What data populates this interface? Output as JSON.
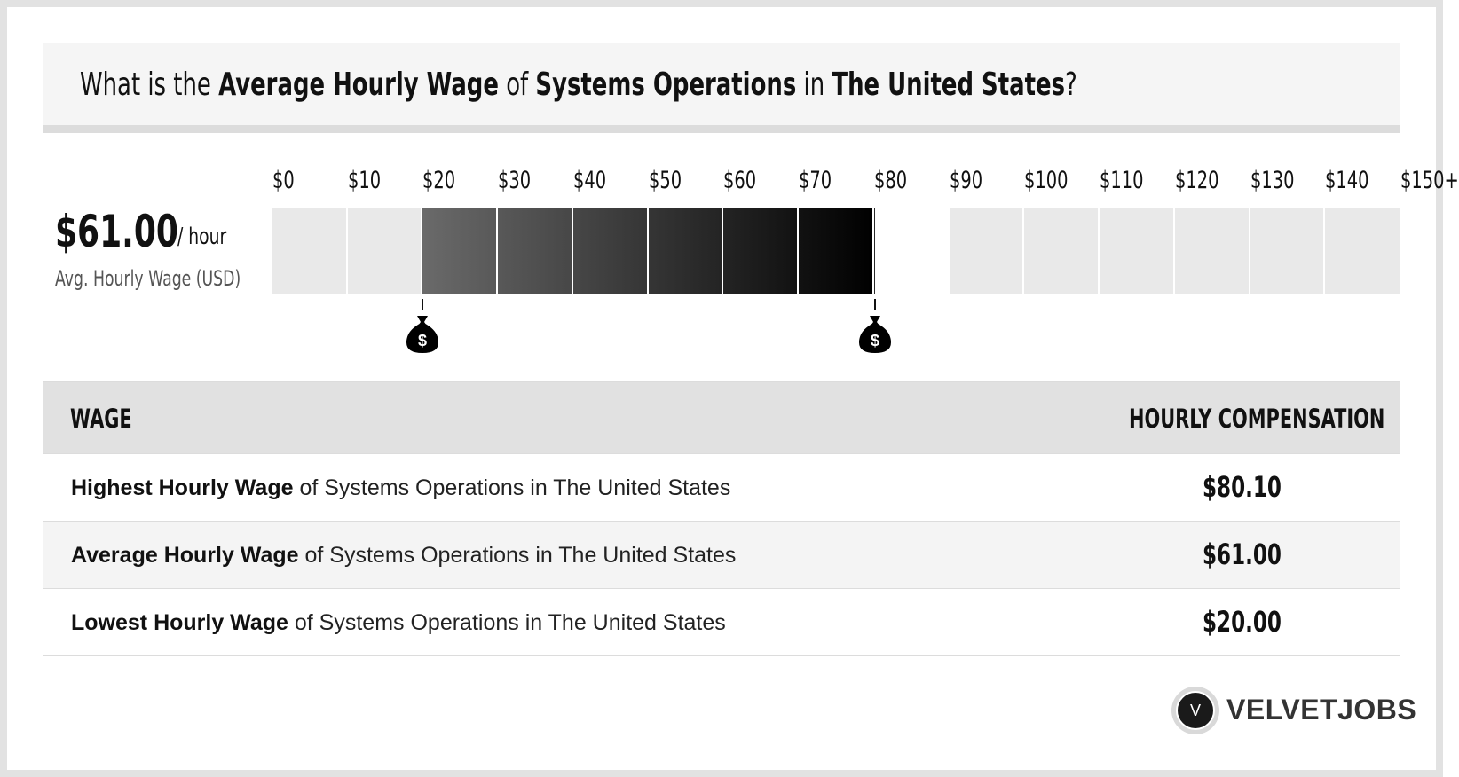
{
  "header": {
    "prefix": "What is the",
    "metric": "Average Hourly Wage",
    "of": "of",
    "job": "Systems Operations",
    "in": "in",
    "location": "The United States",
    "suffix": "?"
  },
  "summary": {
    "value": "$61.00",
    "unit": "/ hour",
    "label": "Avg. Hourly Wage (USD)"
  },
  "chart_data": {
    "type": "bar",
    "tick_labels": [
      "$0",
      "$10",
      "$20",
      "$30",
      "$40",
      "$50",
      "$60",
      "$70",
      "$80",
      "$90",
      "$100",
      "$110",
      "$120",
      "$130",
      "$140",
      "$150+"
    ],
    "x_min": 0,
    "x_max": 150,
    "range_low": 20,
    "range_high": 80.1,
    "average": 61,
    "fill_gradient": [
      "#6a6a6a",
      "#000000"
    ],
    "empty_color": "#e9e9e9",
    "markers": [
      20,
      80.1
    ],
    "marker_icon": "money-bag-icon",
    "marker_symbol": "$"
  },
  "table": {
    "col_wage": "WAGE",
    "col_comp": "HOURLY COMPENSATION",
    "rows": [
      {
        "bold": "Highest Hourly Wage",
        "rest": " of Systems Operations in The United States",
        "value": "$80.10"
      },
      {
        "bold": "Average Hourly Wage",
        "rest": " of Systems Operations in The United States",
        "value": "$61.00"
      },
      {
        "bold": "Lowest Hourly Wage",
        "rest": " of Systems Operations in The United States",
        "value": "$20.00"
      }
    ]
  },
  "brand": {
    "logo_letter": "V",
    "name": "VELVETJOBS"
  }
}
